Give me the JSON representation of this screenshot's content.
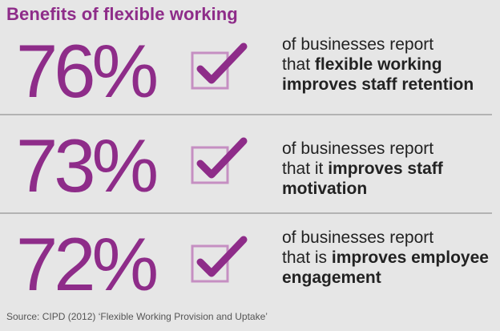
{
  "title": "Benefits of flexible working",
  "colors": {
    "accent": "#8e2c89",
    "box": "#c58fc2",
    "background": "#e6e6e6"
  },
  "stats": [
    {
      "percent": "76%",
      "line1": "of businesses report",
      "line2_plain": "that ",
      "line2_bold": "flexible working",
      "line3_bold": "improves staff retention",
      "icon": "checkbox-check-icon"
    },
    {
      "percent": "73%",
      "line1": "of businesses report",
      "line2_plain": "that it ",
      "line2_bold": "improves staff",
      "line3_bold": "motivation",
      "icon": "checkbox-check-icon"
    },
    {
      "percent": "72%",
      "line1": "of businesses report",
      "line2_plain": "that is ",
      "line2_bold": "improves employee",
      "line3_bold": "engagement",
      "icon": "checkbox-check-icon"
    }
  ],
  "source": "Source: CIPD (2012) ‘Flexible Working Provision and Uptake’"
}
